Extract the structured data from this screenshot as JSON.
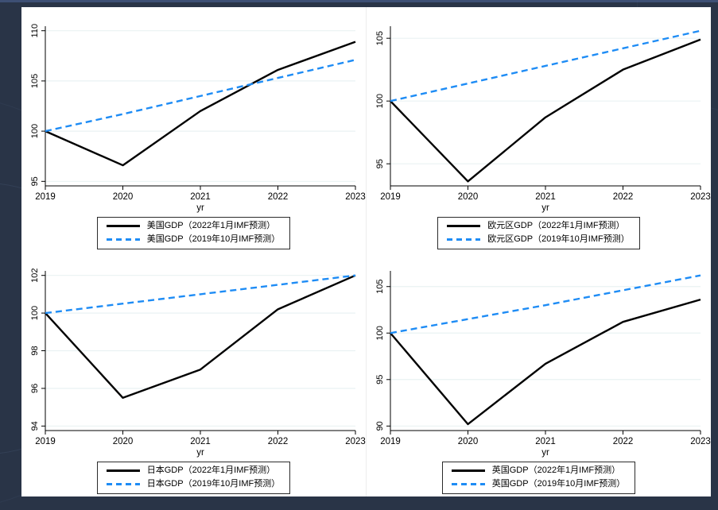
{
  "palette": {
    "actual_line": "#000000",
    "forecast_line": "#1e8cf5",
    "gridline": "#eaf2f3",
    "axis": "#000000",
    "panel_bg": "#ffffff",
    "desktop_bg": "#293447"
  },
  "chart_data": [
    {
      "type": "line",
      "region": "美国",
      "xlabel": "yr",
      "x": [
        2019,
        2020,
        2021,
        2022,
        2023
      ],
      "yticks": [
        95,
        100,
        105,
        110
      ],
      "grid": true,
      "legend_position": "bottom",
      "series": [
        {
          "name": "美国GDP（2022年1月IMF预测）",
          "color": "#000000",
          "dash": null,
          "values": [
            100,
            96.6,
            102.0,
            106.1,
            108.9
          ]
        },
        {
          "name": "美国GDP（2019年10月IMF预测）",
          "color": "#1e8cf5",
          "dash": "8 5",
          "values": [
            100,
            101.7,
            103.5,
            105.3,
            107.1
          ]
        }
      ]
    },
    {
      "type": "line",
      "region": "欧元区",
      "xlabel": "yr",
      "x": [
        2019,
        2020,
        2021,
        2022,
        2023
      ],
      "yticks": [
        95,
        100,
        105
      ],
      "grid": true,
      "legend_position": "bottom",
      "series": [
        {
          "name": "欧元区GDP（2022年1月IMF预测）",
          "color": "#000000",
          "dash": null,
          "values": [
            100,
            93.6,
            98.7,
            102.5,
            104.9
          ]
        },
        {
          "name": "欧元区GDP（2019年10月IMF预测）",
          "color": "#1e8cf5",
          "dash": "8 5",
          "values": [
            100,
            101.4,
            102.8,
            104.2,
            105.6
          ]
        }
      ]
    },
    {
      "type": "line",
      "region": "日本",
      "xlabel": "yr",
      "x": [
        2019,
        2020,
        2021,
        2022,
        2023
      ],
      "yticks": [
        94,
        96,
        98,
        100,
        102
      ],
      "grid": true,
      "legend_position": "bottom",
      "series": [
        {
          "name": "日本GDP（2022年1月IMF预测）",
          "color": "#000000",
          "dash": null,
          "values": [
            100,
            95.5,
            97.0,
            100.2,
            102.0
          ]
        },
        {
          "name": "日本GDP（2019年10月IMF预测）",
          "color": "#1e8cf5",
          "dash": "8 5",
          "values": [
            100,
            100.5,
            101.0,
            101.5,
            102.0
          ]
        }
      ]
    },
    {
      "type": "line",
      "region": "英国",
      "xlabel": "yr",
      "x": [
        2019,
        2020,
        2021,
        2022,
        2023
      ],
      "yticks": [
        90,
        95,
        100,
        105
      ],
      "grid": true,
      "legend_position": "bottom",
      "series": [
        {
          "name": "英国GDP（2022年1月IMF预测）",
          "color": "#000000",
          "dash": null,
          "values": [
            100,
            90.2,
            96.7,
            101.2,
            103.6
          ]
        },
        {
          "name": "英国GDP（2019年10月IMF预测）",
          "color": "#1e8cf5",
          "dash": "8 5",
          "values": [
            100,
            101.5,
            103.0,
            104.6,
            106.2
          ]
        }
      ]
    }
  ]
}
